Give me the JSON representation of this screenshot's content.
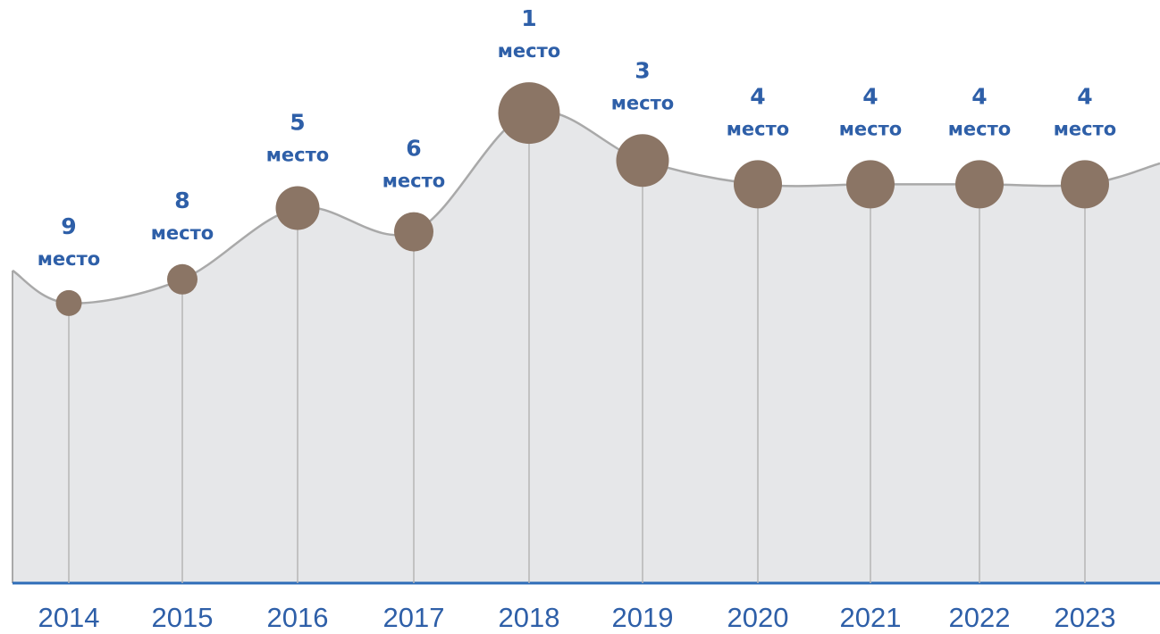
{
  "chart_data": {
    "type": "line",
    "categories": [
      "2014",
      "2015",
      "2016",
      "2017",
      "2018",
      "2019",
      "2020",
      "2021",
      "2022",
      "2023"
    ],
    "values": [
      9,
      8,
      5,
      6,
      1,
      3,
      4,
      4,
      4,
      4
    ],
    "value_labels": [
      "9 место",
      "8 место",
      "5 место",
      "6 место",
      "1 место",
      "3 место",
      "4 место",
      "4 место",
      "4 место",
      "4 место"
    ],
    "color": "#8b7565"
  }
}
